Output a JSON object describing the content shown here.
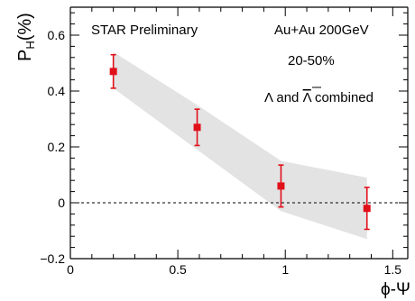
{
  "chart_data": {
    "type": "scatter",
    "ylabel": "P",
    "ylabel_sub": "H",
    "ylabel_unit": "(%)",
    "xlabel": "ϕ-Ψ",
    "xlim": [
      0,
      1.57
    ],
    "ylim": [
      -0.2,
      0.7
    ],
    "x_ticks": [
      0,
      0.5,
      1,
      1.5
    ],
    "x_tick_labels": [
      "0",
      "0.5",
      "1",
      "1.5"
    ],
    "y_ticks": [
      -0.2,
      0,
      0.2,
      0.4,
      0.6
    ],
    "y_tick_labels": [
      "−0.2",
      "0",
      "0.2",
      "0.4",
      "0.6"
    ],
    "series": [
      {
        "marker": "square",
        "color": "#e0101b",
        "points": [
          {
            "x": 0.2,
            "y": 0.47,
            "err": 0.06
          },
          {
            "x": 0.59,
            "y": 0.27,
            "err": 0.065
          },
          {
            "x": 0.98,
            "y": 0.06,
            "err": 0.075
          },
          {
            "x": 1.38,
            "y": -0.02,
            "err": 0.075
          }
        ]
      }
    ],
    "syst_band": [
      {
        "x": 0.2,
        "lo": 0.41,
        "hi": 0.54
      },
      {
        "x": 0.59,
        "lo": 0.19,
        "hi": 0.35
      },
      {
        "x": 0.98,
        "lo": -0.03,
        "hi": 0.15
      },
      {
        "x": 1.38,
        "lo": -0.13,
        "hi": 0.09
      }
    ],
    "reference_line": {
      "y": 0,
      "style": "dashed"
    },
    "annotations": {
      "preliminary": "STAR Preliminary",
      "system": "Au+Au 200GeV",
      "centrality": "20-50%",
      "species_lambda": "Λ",
      "species_and": " and ",
      "species_antilambda": "Λ",
      "species_combined": " combined"
    },
    "colors": {
      "marker": "#e0101b",
      "band": "#d4d4d4",
      "axis": "#000000"
    }
  }
}
